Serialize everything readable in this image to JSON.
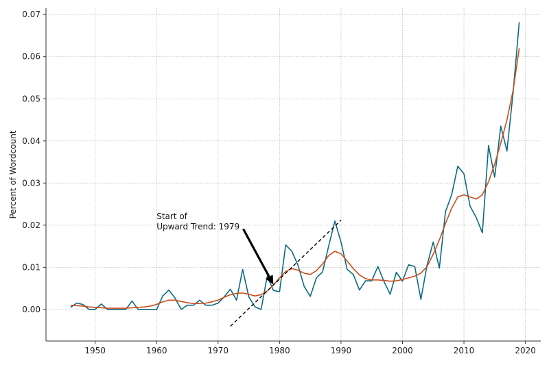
{
  "chart_data": {
    "type": "line",
    "title": "",
    "xlabel": "",
    "ylabel": "Percent of Wordcount",
    "xlim": [
      1942,
      2022.5
    ],
    "ylim": [
      -0.0075,
      0.0715
    ],
    "xticks": [
      1950,
      1960,
      1970,
      1980,
      1990,
      2000,
      2010,
      2020
    ],
    "yticks": [
      0.0,
      0.01,
      0.02,
      0.03,
      0.04,
      0.05,
      0.06,
      0.07
    ],
    "ytick_labels": [
      "0.00",
      "0.01",
      "0.02",
      "0.03",
      "0.04",
      "0.05",
      "0.06",
      "0.07"
    ],
    "grid": true,
    "colors": {
      "raw": "#0b6a80",
      "smoothed": "#cc4c1a",
      "trend": "#000000",
      "arrow": "#000000"
    },
    "x": [
      1946,
      1947,
      1948,
      1949,
      1950,
      1951,
      1952,
      1953,
      1954,
      1955,
      1956,
      1957,
      1958,
      1959,
      1960,
      1961,
      1962,
      1963,
      1964,
      1965,
      1966,
      1967,
      1968,
      1969,
      1970,
      1971,
      1972,
      1973,
      1974,
      1975,
      1976,
      1977,
      1978,
      1979,
      1980,
      1981,
      1982,
      1983,
      1984,
      1985,
      1986,
      1987,
      1988,
      1989,
      1990,
      1991,
      1992,
      1993,
      1994,
      1995,
      1996,
      1997,
      1998,
      1999,
      2000,
      2001,
      2002,
      2003,
      2004,
      2005,
      2006,
      2007,
      2008,
      2009,
      2010,
      2011,
      2012,
      2013,
      2014,
      2015,
      2016,
      2017,
      2018,
      2019
    ],
    "series": [
      {
        "values": [
          0.0005,
          0.0015,
          0.0012,
          0.0,
          0.0,
          0.0013,
          0.0,
          0.0,
          0.0,
          0.0,
          0.002,
          0.0,
          0.0,
          0.0,
          0.0,
          0.0032,
          0.0046,
          0.0027,
          0.0,
          0.001,
          0.001,
          0.0022,
          0.001,
          0.001,
          0.0015,
          0.003,
          0.0048,
          0.0022,
          0.0095,
          0.003,
          0.0006,
          0.0,
          0.0079,
          0.0045,
          0.0042,
          0.0153,
          0.0138,
          0.0105,
          0.0055,
          0.0031,
          0.0075,
          0.0089,
          0.0151,
          0.021,
          0.016,
          0.0095,
          0.0083,
          0.0046,
          0.0068,
          0.0068,
          0.0102,
          0.0066,
          0.0036,
          0.0088,
          0.0067,
          0.0106,
          0.0102,
          0.0024,
          0.0105,
          0.016,
          0.0098,
          0.0232,
          0.0272,
          0.034,
          0.0322,
          0.0245,
          0.0218,
          0.0182,
          0.0389,
          0.0314,
          0.0435,
          0.0376,
          0.0515,
          0.0682
        ]
      },
      {
        "values": [
          0.001,
          0.0009,
          0.0008,
          0.0006,
          0.0005,
          0.0004,
          0.0003,
          0.0003,
          0.0003,
          0.0003,
          0.0004,
          0.0005,
          0.0006,
          0.0008,
          0.0012,
          0.0018,
          0.0022,
          0.0022,
          0.0019,
          0.0016,
          0.0014,
          0.0014,
          0.0015,
          0.0018,
          0.0022,
          0.0029,
          0.0035,
          0.0038,
          0.0039,
          0.0036,
          0.0032,
          0.0035,
          0.0044,
          0.0058,
          0.0075,
          0.009,
          0.0097,
          0.0093,
          0.0086,
          0.0083,
          0.0092,
          0.0108,
          0.0128,
          0.0138,
          0.0132,
          0.0115,
          0.0097,
          0.0082,
          0.0073,
          0.007,
          0.007,
          0.0069,
          0.0067,
          0.0068,
          0.0071,
          0.0075,
          0.0079,
          0.0086,
          0.0102,
          0.0131,
          0.0165,
          0.0204,
          0.024,
          0.0267,
          0.0272,
          0.0267,
          0.0262,
          0.0272,
          0.0303,
          0.0345,
          0.0395,
          0.045,
          0.052,
          0.062
        ]
      }
    ],
    "trend_line": {
      "x": [
        1972,
        1990
      ],
      "y": [
        -0.004,
        0.0212
      ]
    },
    "annotation": {
      "text_line1": "Start of",
      "text_line2": "Upward Trend: 1979",
      "text_x": 1960,
      "text_y": 0.0193,
      "arrow_tail": [
        1974.1,
        0.0191
      ],
      "arrow_head": [
        1979,
        0.0059
      ]
    }
  }
}
